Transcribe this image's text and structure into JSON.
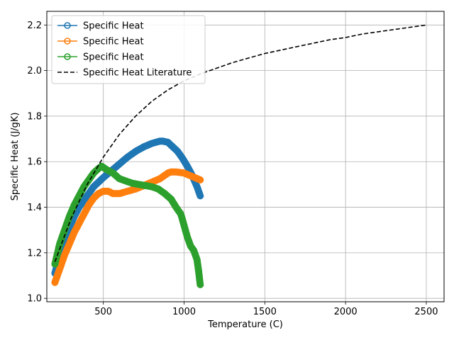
{
  "chart_data": {
    "type": "scatter",
    "title": "",
    "xlabel": "Temperature (C)",
    "ylabel": "Specific Heat (J/gK)",
    "xlim": [
      150,
      2610
    ],
    "ylim": [
      0.985,
      2.26
    ],
    "xticks": [
      500,
      1000,
      1500,
      2000,
      2500
    ],
    "yticks": [
      1.0,
      1.2,
      1.4,
      1.6,
      1.8,
      2.0,
      2.2
    ],
    "xtick_labels": [
      "500",
      "1000",
      "1500",
      "2000",
      "2500"
    ],
    "ytick_labels": [
      "1.0",
      "1.2",
      "1.4",
      "1.6",
      "1.8",
      "2.0",
      "2.2"
    ],
    "grid": true,
    "legend_position": "top-left",
    "series": [
      {
        "name": "Specific Heat",
        "color": "#1f77b4",
        "style": "markers",
        "x": [
          200,
          230,
          260,
          290,
          320,
          350,
          380,
          410,
          440,
          470,
          500,
          550,
          600,
          650,
          700,
          750,
          800,
          850,
          870,
          900,
          930,
          960,
          990,
          1020,
          1050,
          1080,
          1100
        ],
        "y": [
          1.11,
          1.19,
          1.25,
          1.31,
          1.36,
          1.4,
          1.43,
          1.46,
          1.49,
          1.51,
          1.53,
          1.56,
          1.59,
          1.62,
          1.645,
          1.665,
          1.68,
          1.69,
          1.69,
          1.685,
          1.665,
          1.645,
          1.615,
          1.58,
          1.54,
          1.49,
          1.45
        ]
      },
      {
        "name": "Specific Heat",
        "color": "#ff7f0e",
        "style": "markers",
        "x": [
          200,
          230,
          260,
          290,
          320,
          350,
          380,
          410,
          440,
          470,
          500,
          530,
          560,
          600,
          650,
          700,
          750,
          800,
          850,
          900,
          920,
          950,
          1000,
          1050,
          1100
        ],
        "y": [
          1.07,
          1.13,
          1.19,
          1.24,
          1.29,
          1.33,
          1.37,
          1.41,
          1.44,
          1.46,
          1.47,
          1.47,
          1.46,
          1.46,
          1.47,
          1.48,
          1.495,
          1.51,
          1.525,
          1.55,
          1.555,
          1.555,
          1.55,
          1.535,
          1.52
        ]
      },
      {
        "name": "Specific Heat",
        "color": "#2ca02c",
        "style": "markers",
        "x": [
          200,
          230,
          260,
          290,
          320,
          350,
          380,
          410,
          440,
          470,
          490,
          520,
          560,
          600,
          640,
          680,
          720,
          760,
          800,
          840,
          880,
          920,
          950,
          980,
          1000,
          1020,
          1040,
          1060,
          1080,
          1090,
          1100
        ],
        "y": [
          1.15,
          1.24,
          1.3,
          1.36,
          1.41,
          1.45,
          1.49,
          1.52,
          1.55,
          1.57,
          1.58,
          1.565,
          1.55,
          1.525,
          1.515,
          1.505,
          1.5,
          1.495,
          1.49,
          1.48,
          1.46,
          1.435,
          1.4,
          1.37,
          1.32,
          1.27,
          1.23,
          1.21,
          1.17,
          1.12,
          1.06
        ]
      },
      {
        "name": "Specific Heat Literature",
        "color": "#000000",
        "style": "dashed-line",
        "x": [
          200,
          300,
          400,
          500,
          600,
          700,
          800,
          900,
          1000,
          1100,
          1200,
          1300,
          1400,
          1500,
          1600,
          1700,
          1800,
          1900,
          2000,
          2100,
          2200,
          2300,
          2400,
          2500
        ],
        "y": [
          1.16,
          1.35,
          1.5,
          1.62,
          1.72,
          1.8,
          1.865,
          1.915,
          1.955,
          1.985,
          2.01,
          2.035,
          2.055,
          2.075,
          2.09,
          2.105,
          2.12,
          2.135,
          2.145,
          2.16,
          2.17,
          2.18,
          2.19,
          2.2
        ]
      }
    ]
  }
}
